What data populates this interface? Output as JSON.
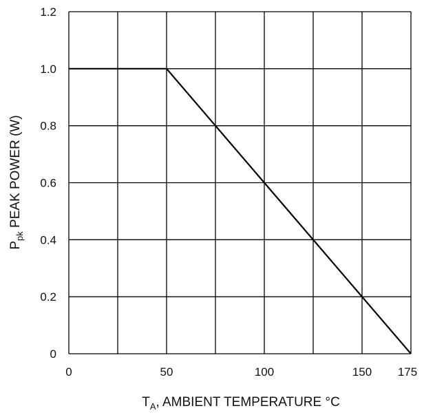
{
  "chart_data": {
    "type": "line",
    "xlabel": {
      "main": "T",
      "sub": "A",
      "rest": ", AMBIENT TEMPERATURE °C"
    },
    "ylabel": {
      "main": "P",
      "sub": "pk",
      "rest": " PEAK POWER (W)"
    },
    "xlim": [
      0,
      175
    ],
    "ylim": [
      0,
      1.2
    ],
    "x_ticks": [
      0,
      50,
      100,
      150,
      175
    ],
    "x_tick_labels": [
      "0",
      "50",
      "100",
      "150",
      "175"
    ],
    "x_gridlines": [
      0,
      25,
      50,
      75,
      100,
      125,
      150,
      175
    ],
    "y_ticks": [
      0,
      0.2,
      0.4,
      0.6,
      0.8,
      1.0,
      1.2
    ],
    "y_tick_labels": [
      "0",
      "0.2",
      "0.4",
      "0.6",
      "0.8",
      "1.0",
      "1.2"
    ],
    "grid": true,
    "series": [
      {
        "x": [
          0,
          50,
          175
        ],
        "y": [
          1.0,
          1.0,
          0.0
        ],
        "color": "#000000"
      }
    ]
  }
}
